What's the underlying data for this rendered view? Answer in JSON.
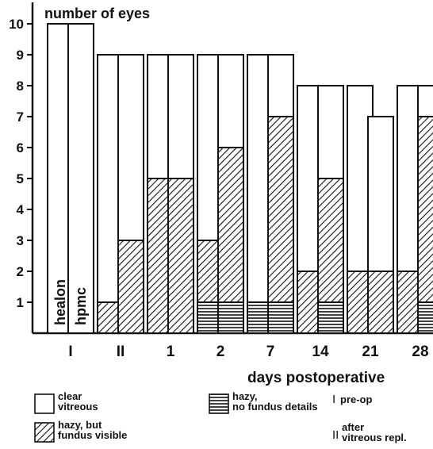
{
  "chart_data": {
    "type": "bar",
    "stacked": true,
    "title": "number of eyes",
    "xlabel": "days postoperative",
    "ylabel": "",
    "ylim": [
      0,
      10
    ],
    "yticks": [
      1,
      2,
      3,
      4,
      5,
      6,
      7,
      8,
      9,
      10
    ],
    "grid": false,
    "categories": [
      "I",
      "II",
      "1",
      "2",
      "7",
      "14",
      "21",
      "28"
    ],
    "bar_names": [
      "healon",
      "hpmc"
    ],
    "segment_order": [
      "hazy_no_fundus",
      "hazy_fundus_visible",
      "clear"
    ],
    "bars": [
      [
        {
          "hazy_no_fundus": 0,
          "hazy_fundus_visible": 0,
          "clear": 10
        },
        {
          "hazy_no_fundus": 0,
          "hazy_fundus_visible": 0,
          "clear": 10
        }
      ],
      [
        {
          "hazy_no_fundus": 0,
          "hazy_fundus_visible": 1,
          "clear": 8
        },
        {
          "hazy_no_fundus": 0,
          "hazy_fundus_visible": 3,
          "clear": 6
        }
      ],
      [
        {
          "hazy_no_fundus": 0,
          "hazy_fundus_visible": 5,
          "clear": 4
        },
        {
          "hazy_no_fundus": 0,
          "hazy_fundus_visible": 5,
          "clear": 4
        }
      ],
      [
        {
          "hazy_no_fundus": 1,
          "hazy_fundus_visible": 2,
          "clear": 6
        },
        {
          "hazy_no_fundus": 1,
          "hazy_fundus_visible": 5,
          "clear": 3
        }
      ],
      [
        {
          "hazy_no_fundus": 1,
          "hazy_fundus_visible": 0,
          "clear": 8
        },
        {
          "hazy_no_fundus": 1,
          "hazy_fundus_visible": 6,
          "clear": 2
        }
      ],
      [
        {
          "hazy_no_fundus": 0,
          "hazy_fundus_visible": 2,
          "clear": 6
        },
        {
          "hazy_no_fundus": 1,
          "hazy_fundus_visible": 4,
          "clear": 3
        }
      ],
      [
        {
          "hazy_no_fundus": 0,
          "hazy_fundus_visible": 2,
          "clear": 6
        },
        {
          "hazy_no_fundus": 0,
          "hazy_fundus_visible": 2,
          "clear": 5
        }
      ],
      [
        {
          "hazy_no_fundus": 0,
          "hazy_fundus_visible": 2,
          "clear": 6
        },
        {
          "hazy_no_fundus": 1,
          "hazy_fundus_visible": 6,
          "clear": 1
        }
      ]
    ],
    "legend": [
      {
        "key": "clear",
        "lines": [
          "clear",
          "vitreous"
        ]
      },
      {
        "key": "hazy_no_fundus",
        "lines": [
          "hazy,",
          "no fundus details"
        ]
      },
      {
        "key": "pre_op",
        "lines": [
          "pre-op"
        ],
        "marker": "I"
      },
      {
        "key": "hazy_fundus_visible",
        "lines": [
          "hazy, but",
          "fundus  visible"
        ]
      },
      {
        "key": "after_repl",
        "lines": [
          "after",
          "vitreous repl."
        ],
        "marker": "II"
      }
    ],
    "colors": {
      "ink": "#111111",
      "background": "#ffffff"
    }
  }
}
